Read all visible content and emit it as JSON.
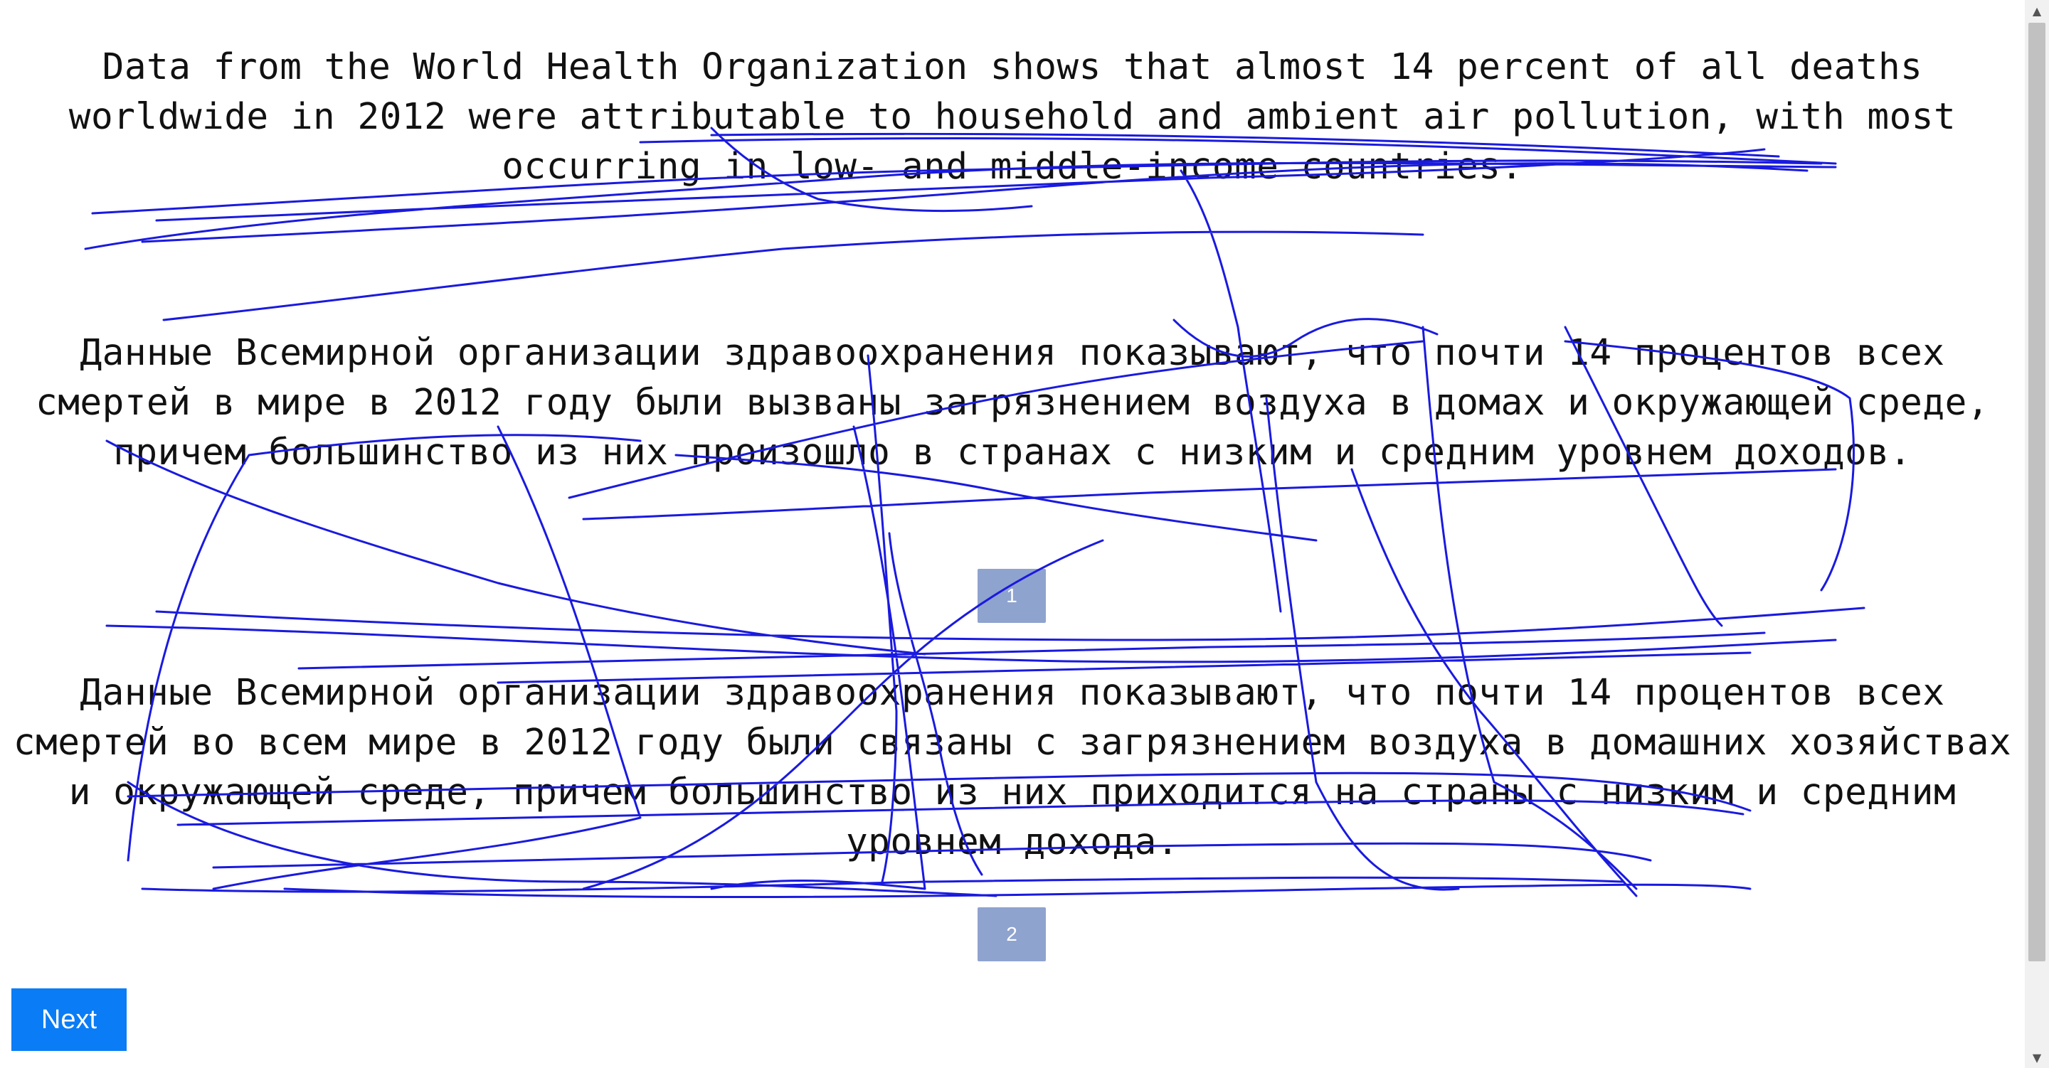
{
  "source": {
    "text": "Data from the World Health Organization shows that almost 14 percent of all deaths worldwide in 2012 were attributable to household and ambient air pollution, with most occurring in low- and middle-income countries."
  },
  "translations": [
    {
      "number": "1",
      "text": "Данные Всемирной организации здравоохранения показывают, что почти 14 процентов всех смертей в мире в 2012 году были вызваны загрязнением воздуха в домах и окружающей среде, причем большинство из них произошло в странах с низким и средним уровнем доходов."
    },
    {
      "number": "2",
      "text": "Данные Всемирной организации здравоохранения показывают, что почти 14 процентов всех смертей во всем мире в 2012 году были связаны с загрязнением воздуха в домашних хозяйствах и окружающей среде, причем большинство из них приходится на страны с низким и средним уровнем дохода."
    }
  ],
  "navigation": {
    "next_label": "Next"
  },
  "colors": {
    "scribble": "#1a1adf",
    "number_box": "#8fa3cf",
    "next_button": "#0a7cf5"
  },
  "icons": {
    "scroll_up": "triangle-up-icon",
    "scroll_down": "triangle-down-icon"
  }
}
